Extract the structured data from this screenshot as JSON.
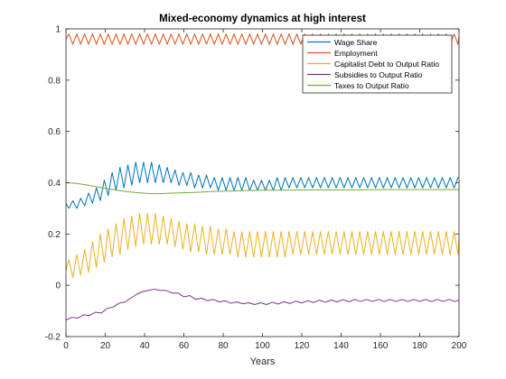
{
  "chart_data": {
    "type": "line",
    "title": "Mixed-economy dynamics at high interest",
    "xlabel": "Years",
    "ylabel": "",
    "xlim": [
      0,
      200
    ],
    "ylim": [
      -0.2,
      1
    ],
    "xticks": [
      0,
      20,
      40,
      60,
      80,
      100,
      120,
      140,
      160,
      180,
      200
    ],
    "yticks": [
      -0.2,
      0,
      0.2,
      0.4,
      0.6,
      0.8,
      1
    ],
    "ytick_labels": [
      "-0.2",
      "0",
      "0.2",
      "0.4",
      "0.6",
      "0.8",
      "1"
    ],
    "grid": false,
    "legend_position": "top-right",
    "series": [
      {
        "name": "Wage Share",
        "color": "#0072BD",
        "x": [
          0,
          1.5,
          3.5,
          5.5,
          7.5,
          9.5,
          11.5,
          13.5,
          15.5,
          17.5,
          19.5,
          21.5,
          23.5,
          25.5,
          27.5,
          29.5,
          31.5,
          33.5,
          35.5,
          37.5,
          39.5,
          41.5,
          43.5,
          45.5,
          47.5,
          49.5,
          51.5,
          53.5,
          55.5,
          57.5,
          59.5,
          61.5,
          63.5,
          65.5,
          67.5,
          69.5,
          71.5,
          73.5,
          75.5,
          77.5,
          79.5,
          81.5,
          83.5,
          85.5,
          87.5,
          89.5,
          91.5,
          93.5,
          95.5,
          97.5,
          99.5,
          101.5,
          103.5,
          105.5,
          107.5,
          109.5,
          111.5,
          113.5,
          115.5,
          117.5,
          119.5,
          121.5,
          123.5,
          125.5,
          127.5,
          129.5,
          131.5,
          133.5,
          135.5,
          137.5,
          139.5,
          141.5,
          143.5,
          145.5,
          147.5,
          149.5,
          151.5,
          153.5,
          155.5,
          157.5,
          159.5,
          161.5,
          163.5,
          165.5,
          167.5,
          169.5,
          171.5,
          173.5,
          175.5,
          177.5,
          179.5,
          181.5,
          183.5,
          185.5,
          187.5,
          189.5,
          191.5,
          193.5,
          195.5,
          197.5,
          199.5,
          200
        ],
        "values": [
          0.32,
          0.3,
          0.33,
          0.3,
          0.34,
          0.31,
          0.36,
          0.32,
          0.38,
          0.33,
          0.41,
          0.35,
          0.44,
          0.37,
          0.46,
          0.38,
          0.47,
          0.39,
          0.48,
          0.4,
          0.48,
          0.4,
          0.48,
          0.4,
          0.47,
          0.4,
          0.46,
          0.4,
          0.45,
          0.39,
          0.44,
          0.39,
          0.44,
          0.38,
          0.43,
          0.38,
          0.43,
          0.38,
          0.42,
          0.37,
          0.42,
          0.37,
          0.42,
          0.37,
          0.42,
          0.37,
          0.42,
          0.37,
          0.41,
          0.37,
          0.41,
          0.37,
          0.41,
          0.37,
          0.42,
          0.37,
          0.42,
          0.38,
          0.42,
          0.38,
          0.42,
          0.38,
          0.42,
          0.38,
          0.42,
          0.38,
          0.42,
          0.38,
          0.42,
          0.38,
          0.42,
          0.38,
          0.42,
          0.38,
          0.42,
          0.38,
          0.42,
          0.38,
          0.42,
          0.38,
          0.42,
          0.38,
          0.42,
          0.38,
          0.42,
          0.38,
          0.42,
          0.38,
          0.42,
          0.38,
          0.42,
          0.38,
          0.42,
          0.38,
          0.42,
          0.38,
          0.42,
          0.38,
          0.42,
          0.38,
          0.42,
          0.42
        ]
      },
      {
        "name": "Employment",
        "color": "#D95319",
        "x": [
          0,
          1.5,
          3.5,
          5.5,
          7.5,
          9.5,
          11.5,
          13.5,
          15.5,
          17.5,
          19.5,
          21.5,
          23.5,
          25.5,
          27.5,
          29.5,
          31.5,
          33.5,
          35.5,
          37.5,
          39.5,
          41.5,
          43.5,
          45.5,
          47.5,
          49.5,
          51.5,
          53.5,
          55.5,
          57.5,
          59.5,
          61.5,
          63.5,
          65.5,
          67.5,
          69.5,
          71.5,
          73.5,
          75.5,
          77.5,
          79.5,
          81.5,
          83.5,
          85.5,
          87.5,
          89.5,
          91.5,
          93.5,
          95.5,
          97.5,
          99.5,
          101.5,
          103.5,
          105.5,
          107.5,
          109.5,
          111.5,
          113.5,
          115.5,
          117.5,
          119.5,
          121.5,
          123.5,
          125.5,
          127.5,
          129.5,
          131.5,
          133.5,
          135.5,
          137.5,
          139.5,
          141.5,
          143.5,
          145.5,
          147.5,
          149.5,
          151.5,
          153.5,
          155.5,
          157.5,
          159.5,
          161.5,
          163.5,
          165.5,
          167.5,
          169.5,
          171.5,
          173.5,
          175.5,
          177.5,
          179.5,
          181.5,
          183.5,
          185.5,
          187.5,
          189.5,
          191.5,
          193.5,
          195.5,
          197.5,
          199.5,
          200
        ],
        "values": [
          0.96,
          0.98,
          0.94,
          0.98,
          0.94,
          0.98,
          0.94,
          0.98,
          0.94,
          0.98,
          0.94,
          0.98,
          0.94,
          0.98,
          0.94,
          0.98,
          0.94,
          0.98,
          0.94,
          0.98,
          0.94,
          0.98,
          0.94,
          0.98,
          0.94,
          0.98,
          0.94,
          0.98,
          0.94,
          0.98,
          0.94,
          0.98,
          0.94,
          0.98,
          0.94,
          0.98,
          0.94,
          0.98,
          0.94,
          0.98,
          0.94,
          0.98,
          0.94,
          0.98,
          0.94,
          0.98,
          0.94,
          0.98,
          0.94,
          0.98,
          0.94,
          0.98,
          0.94,
          0.98,
          0.94,
          0.98,
          0.94,
          0.98,
          0.94,
          0.98,
          0.94,
          0.98,
          0.94,
          0.98,
          0.94,
          0.98,
          0.94,
          0.98,
          0.94,
          0.98,
          0.94,
          0.98,
          0.94,
          0.98,
          0.94,
          0.98,
          0.94,
          0.98,
          0.94,
          0.98,
          0.94,
          0.98,
          0.94,
          0.98,
          0.94,
          0.98,
          0.94,
          0.98,
          0.94,
          0.98,
          0.94,
          0.98,
          0.94,
          0.98,
          0.94,
          0.98,
          0.94,
          0.98,
          0.94,
          0.98,
          0.94,
          0.97
        ]
      },
      {
        "name": "Capitalist Debt to Output Ratio",
        "color": "#EDB120",
        "x": [
          0,
          1.5,
          3.5,
          5.5,
          7.5,
          9.5,
          11.5,
          13.5,
          15.5,
          17.5,
          19.5,
          21.5,
          23.5,
          25.5,
          27.5,
          29.5,
          31.5,
          33.5,
          35.5,
          37.5,
          39.5,
          41.5,
          43.5,
          45.5,
          47.5,
          49.5,
          51.5,
          53.5,
          55.5,
          57.5,
          59.5,
          61.5,
          63.5,
          65.5,
          67.5,
          69.5,
          71.5,
          73.5,
          75.5,
          77.5,
          79.5,
          81.5,
          83.5,
          85.5,
          87.5,
          89.5,
          91.5,
          93.5,
          95.5,
          97.5,
          99.5,
          101.5,
          103.5,
          105.5,
          107.5,
          109.5,
          111.5,
          113.5,
          115.5,
          117.5,
          119.5,
          121.5,
          123.5,
          125.5,
          127.5,
          129.5,
          131.5,
          133.5,
          135.5,
          137.5,
          139.5,
          141.5,
          143.5,
          145.5,
          147.5,
          149.5,
          151.5,
          153.5,
          155.5,
          157.5,
          159.5,
          161.5,
          163.5,
          165.5,
          167.5,
          169.5,
          171.5,
          173.5,
          175.5,
          177.5,
          179.5,
          181.5,
          183.5,
          185.5,
          187.5,
          189.5,
          191.5,
          193.5,
          195.5,
          197.5,
          199.5,
          200
        ],
        "values": [
          0.06,
          0.1,
          0.03,
          0.12,
          0.04,
          0.14,
          0.05,
          0.17,
          0.07,
          0.2,
          0.09,
          0.22,
          0.11,
          0.24,
          0.12,
          0.26,
          0.14,
          0.27,
          0.15,
          0.28,
          0.16,
          0.28,
          0.16,
          0.28,
          0.16,
          0.27,
          0.16,
          0.26,
          0.15,
          0.25,
          0.14,
          0.24,
          0.13,
          0.24,
          0.13,
          0.23,
          0.12,
          0.23,
          0.12,
          0.22,
          0.12,
          0.22,
          0.12,
          0.21,
          0.11,
          0.21,
          0.11,
          0.21,
          0.11,
          0.21,
          0.11,
          0.21,
          0.11,
          0.21,
          0.11,
          0.21,
          0.11,
          0.21,
          0.12,
          0.21,
          0.12,
          0.21,
          0.12,
          0.21,
          0.12,
          0.21,
          0.12,
          0.21,
          0.12,
          0.21,
          0.12,
          0.21,
          0.12,
          0.21,
          0.12,
          0.21,
          0.12,
          0.21,
          0.12,
          0.21,
          0.12,
          0.21,
          0.12,
          0.21,
          0.12,
          0.21,
          0.12,
          0.21,
          0.12,
          0.21,
          0.12,
          0.21,
          0.12,
          0.21,
          0.12,
          0.21,
          0.12,
          0.21,
          0.12,
          0.21,
          0.12,
          0.18
        ]
      },
      {
        "name": "Subsidies to Output Ratio",
        "color": "#7E2F8E",
        "x": [
          0,
          3,
          6,
          9,
          12,
          15,
          18,
          21,
          24,
          27,
          30,
          33,
          36,
          39,
          42,
          45,
          48,
          51,
          54,
          57,
          60,
          63,
          66,
          69,
          72,
          75,
          78,
          81,
          84,
          87,
          90,
          93,
          96,
          99,
          102,
          105,
          108,
          111,
          114,
          117,
          120,
          123,
          126,
          129,
          132,
          135,
          138,
          141,
          144,
          147,
          150,
          153,
          156,
          159,
          162,
          165,
          168,
          171,
          174,
          177,
          180,
          183,
          186,
          189,
          192,
          195,
          198,
          200
        ],
        "values": [
          -0.135,
          -0.125,
          -0.128,
          -0.115,
          -0.118,
          -0.105,
          -0.108,
          -0.09,
          -0.085,
          -0.07,
          -0.065,
          -0.05,
          -0.035,
          -0.025,
          -0.02,
          -0.015,
          -0.02,
          -0.02,
          -0.03,
          -0.03,
          -0.045,
          -0.04,
          -0.055,
          -0.05,
          -0.06,
          -0.055,
          -0.065,
          -0.06,
          -0.07,
          -0.065,
          -0.072,
          -0.068,
          -0.075,
          -0.068,
          -0.075,
          -0.066,
          -0.073,
          -0.064,
          -0.071,
          -0.062,
          -0.069,
          -0.06,
          -0.067,
          -0.058,
          -0.066,
          -0.057,
          -0.065,
          -0.056,
          -0.064,
          -0.055,
          -0.063,
          -0.055,
          -0.063,
          -0.055,
          -0.063,
          -0.055,
          -0.063,
          -0.055,
          -0.063,
          -0.055,
          -0.063,
          -0.055,
          -0.063,
          -0.055,
          -0.063,
          -0.055,
          -0.063,
          -0.058
        ]
      },
      {
        "name": "Taxes to Output Ratio",
        "color": "#77AC30",
        "x": [
          0,
          5,
          10,
          15,
          20,
          25,
          30,
          35,
          40,
          45,
          50,
          55,
          60,
          65,
          70,
          75,
          80,
          85,
          90,
          95,
          100,
          110,
          120,
          130,
          140,
          150,
          160,
          170,
          180,
          190,
          200
        ],
        "values": [
          0.4,
          0.398,
          0.392,
          0.385,
          0.378,
          0.372,
          0.366,
          0.362,
          0.359,
          0.357,
          0.358,
          0.36,
          0.361,
          0.362,
          0.364,
          0.366,
          0.367,
          0.368,
          0.369,
          0.37,
          0.371,
          0.371,
          0.372,
          0.372,
          0.372,
          0.372,
          0.373,
          0.373,
          0.373,
          0.373,
          0.373
        ]
      }
    ]
  }
}
